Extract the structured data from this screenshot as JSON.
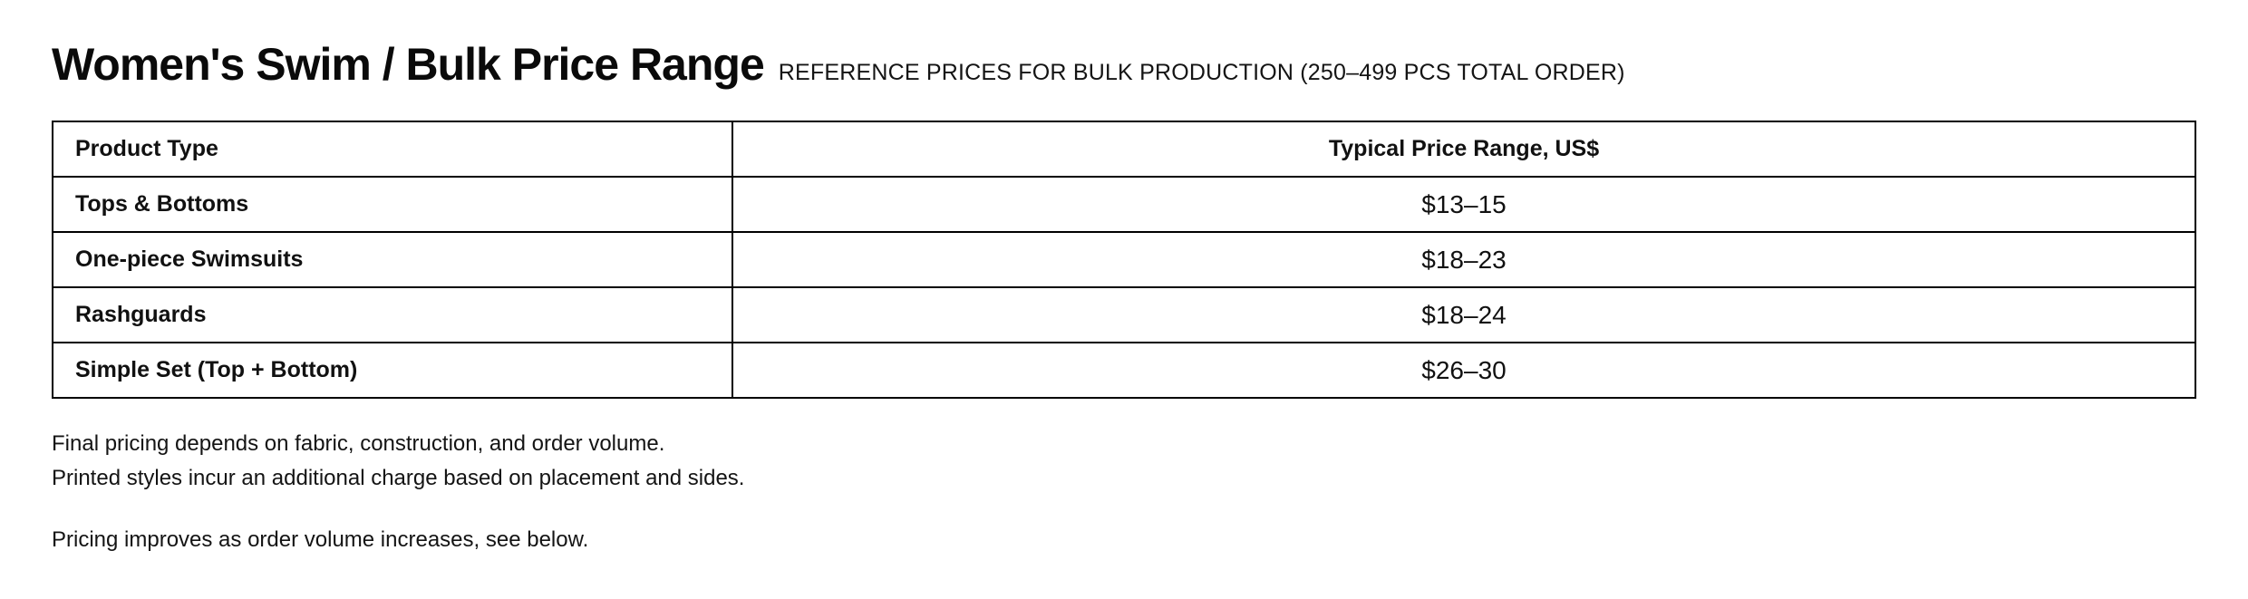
{
  "page": {
    "title": "Women's Swim / Bulk Price Range",
    "subtitle": "REFERENCE PRICES FOR BULK PRODUCTION (250–499 PCS TOTAL ORDER)"
  },
  "table": {
    "columns": {
      "product": "Product Type",
      "price": "Typical Price Range, US$"
    },
    "rows": [
      {
        "product": "Tops & Bottoms",
        "price": "$13–15"
      },
      {
        "product": "One-piece Swimsuits",
        "price": "$18–23"
      },
      {
        "product": "Rashguards",
        "price": "$18–24"
      },
      {
        "product": "Simple Set (Top + Bottom)",
        "price": "$26–30"
      }
    ]
  },
  "notes": {
    "line1": "Final pricing depends on fabric, construction, and order volume.",
    "line2": "Printed styles incur an additional charge based on placement and sides.",
    "line3": "Pricing improves as order volume increases, see below."
  },
  "colors": {
    "background": "#ffffff",
    "text": "#111111",
    "border": "#000000"
  }
}
